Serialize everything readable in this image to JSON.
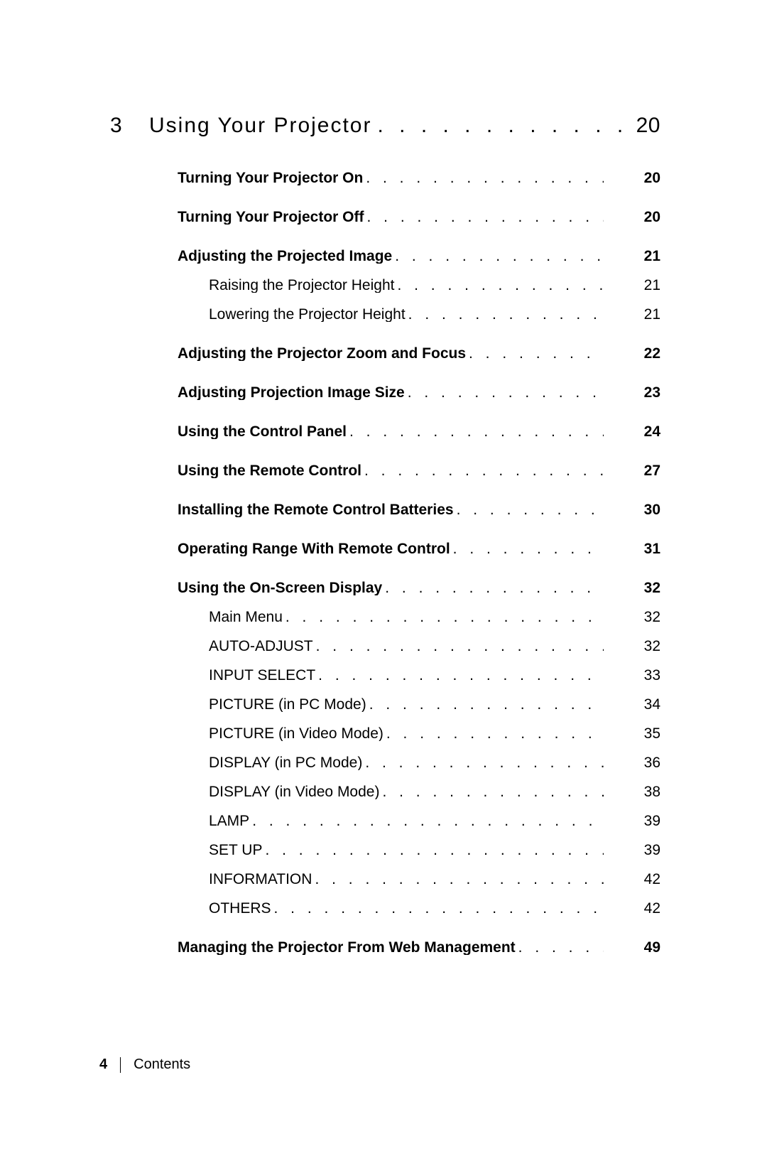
{
  "chapter": {
    "number": "3",
    "title": "Using Your Projector",
    "page": "20"
  },
  "leader_dots_chapter": ". . . . . . . . . . . . . . . . . . . . . . . . . . . . . . . . . . . . . . . .",
  "leader_dots": ". . . . . . . . . . . . . . . . . . . . . . . . . . . . . . . . . . . . . . . . . . . . . . . . . . . . . . . .",
  "groups": [
    {
      "items": [
        {
          "t": "Turning Your Projector On",
          "p": "20",
          "bold": true
        }
      ]
    },
    {
      "items": [
        {
          "t": "Turning Your Projector Off",
          "p": "20",
          "bold": true
        }
      ]
    },
    {
      "items": [
        {
          "t": "Adjusting the Projected Image ",
          "p": "21",
          "bold": true
        },
        {
          "t": "Raising the Projector Height",
          "p": "21",
          "bold": false,
          "sub": true
        },
        {
          "t": "Lowering the Projector Height",
          "p": "21",
          "bold": false,
          "sub": true
        }
      ]
    },
    {
      "items": [
        {
          "t": "Adjusting the Projector Zoom and Focus",
          "p": "22",
          "bold": true
        }
      ]
    },
    {
      "items": [
        {
          "t": "Adjusting Projection Image Size ",
          "p": "23",
          "bold": true
        }
      ]
    },
    {
      "items": [
        {
          "t": "Using the Control Panel",
          "p": "24",
          "bold": true
        }
      ]
    },
    {
      "items": [
        {
          "t": "Using the Remote Control",
          "p": "27",
          "bold": true
        }
      ]
    },
    {
      "items": [
        {
          "t": "Installing the Remote Control Batteries ",
          "p": "30",
          "bold": true
        }
      ]
    },
    {
      "items": [
        {
          "t": "Operating Range With Remote Control",
          "p": "31",
          "bold": true
        }
      ]
    },
    {
      "items": [
        {
          "t": "Using the On-Screen Display",
          "p": "32",
          "bold": true
        },
        {
          "t": "Main Menu",
          "p": "32",
          "bold": false,
          "sub": true
        },
        {
          "t": "AUTO-ADJUST",
          "p": "32",
          "bold": false,
          "sub": true
        },
        {
          "t": "INPUT SELECT",
          "p": "33",
          "bold": false,
          "sub": true
        },
        {
          "t": "PICTURE (in PC Mode)",
          "p": "34",
          "bold": false,
          "sub": true
        },
        {
          "t": "PICTURE (in Video Mode) ",
          "p": "35",
          "bold": false,
          "sub": true
        },
        {
          "t": "DISPLAY (in PC Mode)",
          "p": "36",
          "bold": false,
          "sub": true
        },
        {
          "t": "DISPLAY (in Video Mode) ",
          "p": "38",
          "bold": false,
          "sub": true
        },
        {
          "t": "LAMP",
          "p": "39",
          "bold": false,
          "sub": true
        },
        {
          "t": "SET UP ",
          "p": "39",
          "bold": false,
          "sub": true
        },
        {
          "t": "INFORMATION",
          "p": "42",
          "bold": false,
          "sub": true
        },
        {
          "t": "OTHERS",
          "p": "42",
          "bold": false,
          "sub": true
        }
      ]
    },
    {
      "items": [
        {
          "t": "Managing the Projector From Web Management ",
          "p": "49",
          "bold": true
        }
      ]
    }
  ],
  "footer": {
    "page": "4",
    "label": "Contents"
  }
}
